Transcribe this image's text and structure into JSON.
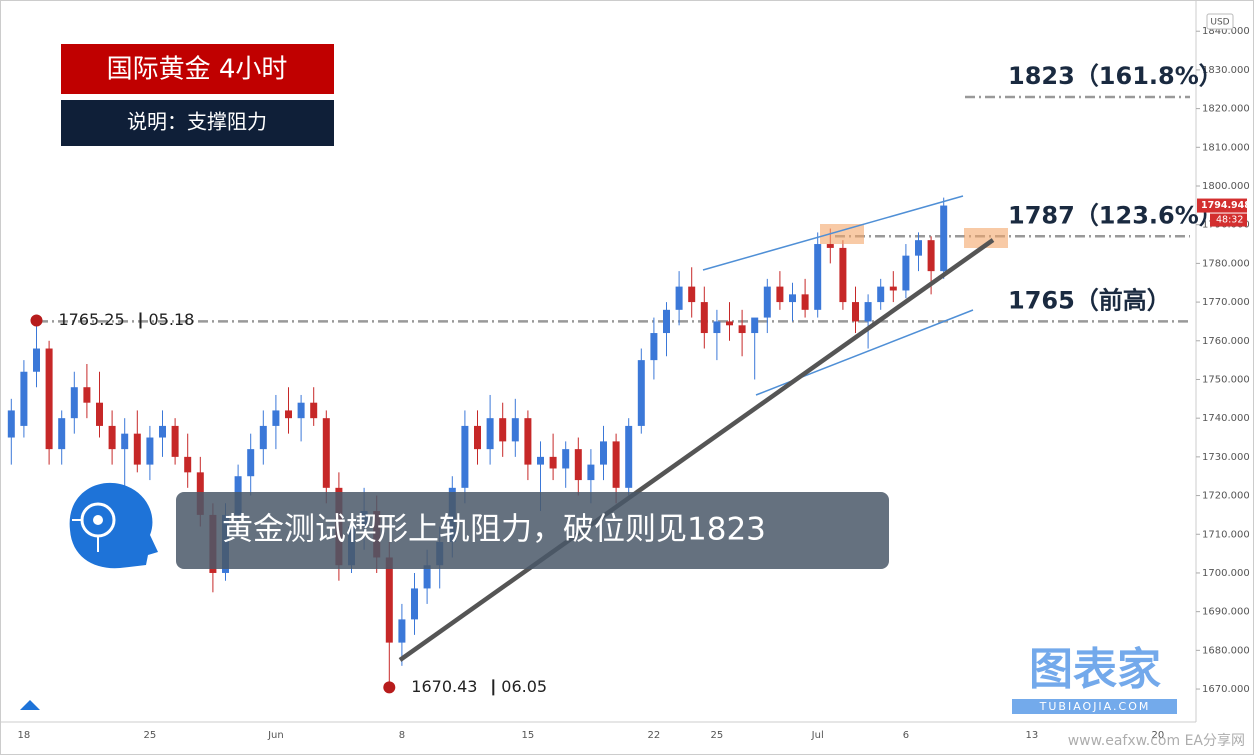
{
  "header": {
    "title": "国际黄金 4小时",
    "subtitle": "说明：支撑阻力"
  },
  "banner": "黄金测试楔形上轨阻力，破位则见1823",
  "logo": {
    "name": "图表家",
    "url": "TUBIAOJIA.COM"
  },
  "watermark": "www.eafxw.com EA分享网",
  "chart_data": {
    "type": "candlestick",
    "currency": "USD",
    "categories": [
      null,
      "18",
      null,
      null,
      null,
      null,
      null,
      null,
      null,
      null,
      null,
      "25",
      null,
      null,
      null,
      null,
      null,
      null,
      null,
      null,
      null,
      "Jun",
      null,
      null,
      null,
      null,
      null,
      null,
      null,
      null,
      null,
      "8",
      null,
      null,
      null,
      null,
      null,
      null,
      null,
      null,
      null,
      "15",
      null,
      null,
      null,
      null,
      null,
      null,
      null,
      null,
      null,
      "22",
      null,
      null,
      null,
      null,
      "25",
      null,
      null,
      null,
      null,
      null,
      null,
      null,
      "Jul",
      null,
      null,
      null,
      null,
      null,
      null,
      "6",
      null,
      null,
      null,
      null,
      null,
      null,
      null,
      null,
      null,
      "13",
      null,
      null,
      null,
      null,
      null,
      null,
      null,
      null,
      null,
      "20",
      null,
      null
    ],
    "ohlc": [
      [
        1735,
        1745,
        1728,
        1742
      ],
      [
        1738,
        1755,
        1735,
        1752
      ],
      [
        1752,
        1765.25,
        1748,
        1758
      ],
      [
        1758,
        1760,
        1728,
        1732
      ],
      [
        1732,
        1742,
        1728,
        1740
      ],
      [
        1740,
        1752,
        1736,
        1748
      ],
      [
        1748,
        1754,
        1740,
        1744
      ],
      [
        1744,
        1752,
        1735,
        1738
      ],
      [
        1738,
        1742,
        1728,
        1732
      ],
      [
        1732,
        1740,
        1722,
        1736
      ],
      [
        1736,
        1742,
        1726,
        1728
      ],
      [
        1728,
        1738,
        1724,
        1735
      ],
      [
        1735,
        1742,
        1730,
        1738
      ],
      [
        1738,
        1740,
        1728,
        1730
      ],
      [
        1730,
        1736,
        1722,
        1726
      ],
      [
        1726,
        1730,
        1712,
        1715
      ],
      [
        1715,
        1718,
        1695,
        1700
      ],
      [
        1700,
        1718,
        1698,
        1715
      ],
      [
        1715,
        1728,
        1712,
        1725
      ],
      [
        1725,
        1736,
        1720,
        1732
      ],
      [
        1732,
        1742,
        1728,
        1738
      ],
      [
        1738,
        1746,
        1732,
        1742
      ],
      [
        1742,
        1748,
        1736,
        1740
      ],
      [
        1740,
        1746,
        1734,
        1744
      ],
      [
        1744,
        1748,
        1738,
        1740
      ],
      [
        1740,
        1742,
        1718,
        1722
      ],
      [
        1722,
        1726,
        1698,
        1702
      ],
      [
        1702,
        1715,
        1700,
        1712
      ],
      [
        1712,
        1722,
        1706,
        1716
      ],
      [
        1716,
        1720,
        1700,
        1704
      ],
      [
        1704,
        1708,
        1670.43,
        1682
      ],
      [
        1682,
        1692,
        1676,
        1688
      ],
      [
        1688,
        1700,
        1684,
        1696
      ],
      [
        1696,
        1706,
        1692,
        1702
      ],
      [
        1702,
        1712,
        1696,
        1708
      ],
      [
        1708,
        1725,
        1704,
        1722
      ],
      [
        1722,
        1742,
        1718,
        1738
      ],
      [
        1738,
        1742,
        1728,
        1732
      ],
      [
        1732,
        1746,
        1728,
        1740
      ],
      [
        1740,
        1744,
        1730,
        1734
      ],
      [
        1734,
        1745,
        1730,
        1740
      ],
      [
        1740,
        1742,
        1724,
        1728
      ],
      [
        1728,
        1734,
        1716,
        1730
      ],
      [
        1730,
        1736,
        1724,
        1727
      ],
      [
        1727,
        1734,
        1722,
        1732
      ],
      [
        1732,
        1735,
        1720,
        1724
      ],
      [
        1724,
        1732,
        1718,
        1728
      ],
      [
        1728,
        1738,
        1724,
        1734
      ],
      [
        1734,
        1736,
        1718,
        1722
      ],
      [
        1722,
        1740,
        1720,
        1738
      ],
      [
        1738,
        1758,
        1736,
        1755
      ],
      [
        1755,
        1766,
        1750,
        1762
      ],
      [
        1762,
        1770,
        1756,
        1768
      ],
      [
        1768,
        1778,
        1764,
        1774
      ],
      [
        1774,
        1779,
        1766,
        1770
      ],
      [
        1770,
        1774,
        1758,
        1762
      ],
      [
        1762,
        1768,
        1755,
        1765
      ],
      [
        1765,
        1770,
        1760,
        1764
      ],
      [
        1764,
        1768,
        1756,
        1762
      ],
      [
        1762,
        1764,
        1750,
        1766
      ],
      [
        1766,
        1776,
        1762,
        1774
      ],
      [
        1774,
        1778,
        1768,
        1770
      ],
      [
        1770,
        1775,
        1765,
        1772
      ],
      [
        1772,
        1776,
        1766,
        1768
      ],
      [
        1768,
        1788,
        1766,
        1785
      ],
      [
        1785,
        1789,
        1780,
        1784
      ],
      [
        1784,
        1786,
        1768,
        1770
      ],
      [
        1770,
        1774,
        1762,
        1765
      ],
      [
        1765,
        1772,
        1758,
        1770
      ],
      [
        1770,
        1776,
        1768,
        1774
      ],
      [
        1774,
        1778,
        1770,
        1773
      ],
      [
        1773,
        1785,
        1771,
        1782
      ],
      [
        1782,
        1788,
        1778,
        1786
      ],
      [
        1786,
        1787,
        1772,
        1778
      ],
      [
        1778,
        1797,
        1776,
        1794.948
      ],
      null,
      null,
      null,
      null,
      null,
      null,
      null,
      null,
      null,
      null,
      null,
      null,
      null,
      null,
      null,
      null,
      null,
      null,
      null
    ],
    "up_color": "#3b78d8",
    "down_color": "#c62828",
    "ylim": [
      1662,
      1846
    ],
    "yticks": [
      {
        "value": 1670,
        "label": "1670.000"
      },
      {
        "value": 1680,
        "label": "1680.000"
      },
      {
        "value": 1690,
        "label": "1690.000"
      },
      {
        "value": 1700,
        "label": "1700.000"
      },
      {
        "value": 1710,
        "label": "1710.000"
      },
      {
        "value": 1720,
        "label": "1720.000"
      },
      {
        "value": 1730,
        "label": "1730.000"
      },
      {
        "value": 1740,
        "label": "1740.000"
      },
      {
        "value": 1750,
        "label": "1750.000"
      },
      {
        "value": 1760,
        "label": "1760.000"
      },
      {
        "value": 1770,
        "label": "1770.000"
      },
      {
        "value": 1780,
        "label": "1780.000"
      },
      {
        "value": 1790,
        "label": "1790.000"
      },
      {
        "value": 1800,
        "label": "1800.000"
      },
      {
        "value": 1810,
        "label": "1810.000"
      },
      {
        "value": 1820,
        "label": "1820.000"
      },
      {
        "value": 1830,
        "label": "1830.000"
      },
      {
        "value": 1840,
        "label": "1840.000"
      }
    ],
    "grid": false,
    "levels": [
      {
        "value": 1823,
        "label": "1823（161.8%）"
      },
      {
        "value": 1787,
        "label": "1787（123.6%）"
      },
      {
        "value": 1765,
        "label": "1765（前高）"
      }
    ],
    "markers": [
      {
        "value": 1765.25,
        "date": "05.18",
        "color": "#b71c1c"
      },
      {
        "value": 1670.43,
        "date": "06.05",
        "color": "#b71c1c"
      }
    ],
    "last_price": {
      "value": 1794.948,
      "countdown": "48:32",
      "color": "#d32f2f"
    }
  }
}
